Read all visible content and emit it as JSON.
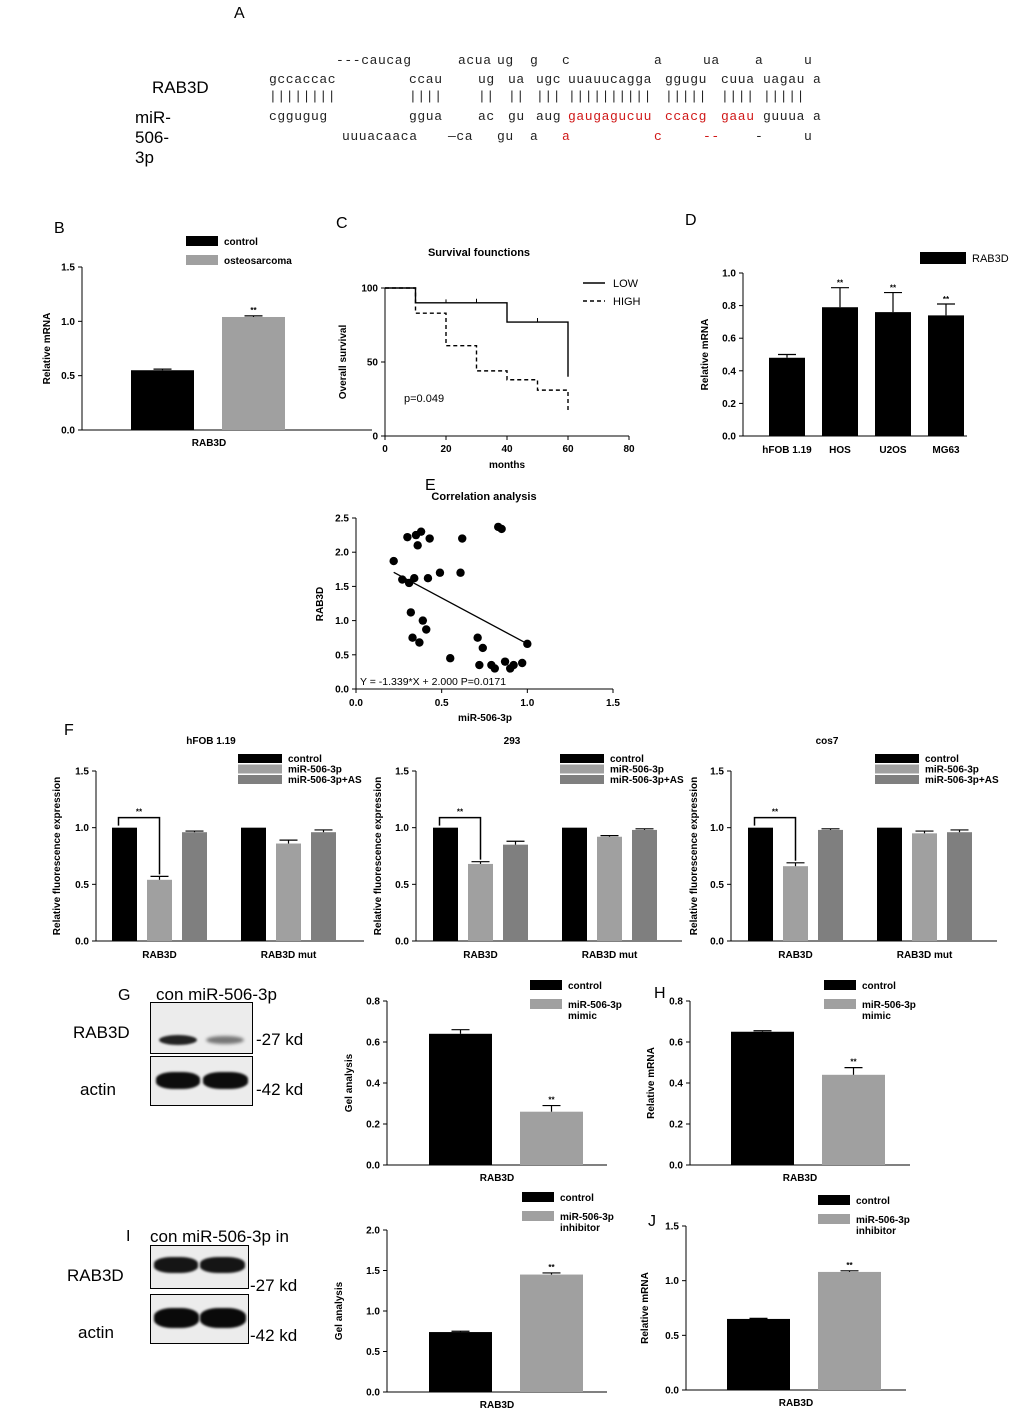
{
  "panel_letters": {
    "A": "A",
    "B": "B",
    "C": "C",
    "D": "D",
    "E": "E",
    "F": "F",
    "G": "G",
    "H": "H",
    "I": "I",
    "J": "J"
  },
  "panelA": {
    "gene_label": "RAB3D",
    "mirna_label": "miR-506-3p",
    "rows": [
      {
        "id": "r1",
        "color": "#222222",
        "segments": [
          {
            "text": "---caucag",
            "x": 336
          },
          {
            "text": "acua",
            "x": 458
          },
          {
            "text": "ug",
            "x": 497
          },
          {
            "text": "g",
            "x": 530
          },
          {
            "text": "c",
            "x": 562
          },
          {
            "text": "a",
            "x": 654
          },
          {
            "text": "ua",
            "x": 703
          },
          {
            "text": "a",
            "x": 755
          },
          {
            "text": "u",
            "x": 804
          }
        ]
      },
      {
        "id": "r2",
        "color": "#222222",
        "segments": [
          {
            "text": "gccaccac",
            "x": 269
          },
          {
            "text": "ccau",
            "x": 409
          },
          {
            "text": "ug",
            "x": 478
          },
          {
            "text": "ua",
            "x": 508
          },
          {
            "text": "ugc",
            "x": 536
          },
          {
            "text": "uuauucagga",
            "x": 568,
            "color": "#222222"
          },
          {
            "text": "ggugu",
            "x": 665
          },
          {
            "text": "cuua",
            "x": 721
          },
          {
            "text": "uagau",
            "x": 763
          },
          {
            "text": "a",
            "x": 813
          }
        ]
      },
      {
        "id": "r3",
        "color": "#222222",
        "segments": [
          {
            "text": "||||||||",
            "x": 269
          },
          {
            "text": "||||",
            "x": 409
          },
          {
            "text": "||",
            "x": 478
          },
          {
            "text": "||",
            "x": 508
          },
          {
            "text": "|||",
            "x": 536
          },
          {
            "text": "||||||||||",
            "x": 568
          },
          {
            "text": "|||||",
            "x": 665
          },
          {
            "text": "||||",
            "x": 721
          },
          {
            "text": "|||||",
            "x": 763
          }
        ]
      },
      {
        "id": "r4",
        "color": "#222222",
        "segments": [
          {
            "text": "cggugug",
            "x": 269
          },
          {
            "text": "ggua",
            "x": 409
          },
          {
            "text": "ac",
            "x": 478
          },
          {
            "text": "gu",
            "x": 508
          },
          {
            "text": "aug",
            "x": 536
          },
          {
            "text": "gaugagucuu",
            "x": 568,
            "color": "#d01818"
          },
          {
            "text": "ccacg",
            "x": 665,
            "color": "#d01818"
          },
          {
            "text": "gaau",
            "x": 721,
            "color": "#d01818"
          },
          {
            "text": "guuua",
            "x": 763
          },
          {
            "text": "a",
            "x": 813
          }
        ]
      },
      {
        "id": "r5",
        "color": "#222222",
        "segments": [
          {
            "text": "uuuacaaca",
            "x": 342
          },
          {
            "text": "—ca",
            "x": 448
          },
          {
            "text": "gu",
            "x": 497
          },
          {
            "text": "a",
            "x": 530
          },
          {
            "text": "a",
            "x": 562,
            "color": "#d01818"
          },
          {
            "text": "c",
            "x": 654,
            "color": "#d01818"
          },
          {
            "text": "--",
            "x": 703,
            "color": "#d01818"
          },
          {
            "text": "-",
            "x": 755
          },
          {
            "text": "u",
            "x": 804
          }
        ]
      }
    ]
  },
  "panelG": {
    "header": "con miR-506-3p",
    "protein": "RAB3D",
    "control": "actin",
    "size1": "-27 kd",
    "size2": "-42 kd"
  },
  "panelI": {
    "header": "con miR-506-3p in",
    "protein": "RAB3D",
    "control": "actin",
    "size1": "-27 kd",
    "size2": "-42 kd"
  },
  "chart_data": [
    {
      "id": "B",
      "type": "bar",
      "xlabel": "RAB3D",
      "ylabel": "Relative mRNA",
      "ylim": [
        0,
        1.5
      ],
      "yticks": [
        "0.0",
        "0.5",
        "1.0",
        "1.5"
      ],
      "legend": "top-center",
      "sig": "**",
      "series": [
        {
          "name": "control",
          "color": "#000000",
          "values": [
            0.55
          ],
          "err": [
            0.01
          ]
        },
        {
          "name": "osteosarcoma",
          "color": "#a0a0a0",
          "values": [
            1.04
          ],
          "err": [
            0.01
          ]
        }
      ]
    },
    {
      "id": "C",
      "type": "line",
      "title": "Survival founctions",
      "xlabel": "months",
      "ylabel": "Overall survival",
      "xlim": [
        0,
        80
      ],
      "ylim": [
        0,
        100
      ],
      "xticks": [
        "0",
        "20",
        "40",
        "60",
        "80"
      ],
      "yticks": [
        "0",
        "50",
        "100"
      ],
      "annotation": "p=0.049",
      "series": [
        {
          "name": "LOW",
          "style": "solid",
          "points": [
            [
              0,
              100
            ],
            [
              10,
              100
            ],
            [
              10,
              90
            ],
            [
              40,
              90
            ],
            [
              40,
              77
            ],
            [
              60,
              77
            ],
            [
              60,
              40
            ]
          ]
        },
        {
          "name": "HIGH",
          "style": "dashed",
          "points": [
            [
              0,
              100
            ],
            [
              10,
              100
            ],
            [
              10,
              83
            ],
            [
              20,
              83
            ],
            [
              20,
              61
            ],
            [
              30,
              61
            ],
            [
              30,
              44
            ],
            [
              40,
              44
            ],
            [
              40,
              38
            ],
            [
              50,
              38
            ],
            [
              50,
              31
            ],
            [
              60,
              31
            ],
            [
              60,
              16
            ]
          ]
        }
      ]
    },
    {
      "id": "D",
      "type": "bar",
      "ylabel": "Relative mRNA",
      "ylim": [
        0,
        1.0
      ],
      "yticks": [
        "0.0",
        "0.2",
        "0.4",
        "0.6",
        "0.8",
        "1.0"
      ],
      "categories": [
        "hFOB 1.19",
        "HOS",
        "U2OS",
        "MG63"
      ],
      "legend": "top-right",
      "series": [
        {
          "name": "RAB3D",
          "color": "#000000",
          "values": [
            0.48,
            0.79,
            0.76,
            0.74
          ],
          "err": [
            0.02,
            0.12,
            0.12,
            0.07
          ],
          "sig": [
            "",
            "**",
            "**",
            "**"
          ]
        }
      ]
    },
    {
      "id": "E",
      "type": "scatter",
      "title": "Correlation analysis",
      "xlabel": "miR-506-3p",
      "ylabel": "RAB3D",
      "xlim": [
        0,
        1.5
      ],
      "ylim": [
        0,
        2.5
      ],
      "xticks": [
        "0.0",
        "0.5",
        "1.0",
        "1.5"
      ],
      "yticks": [
        "0.0",
        "0.5",
        "1.0",
        "1.5",
        "2.0",
        "2.5"
      ],
      "equation": "Y = -1.339*X + 2.000 P=0.0171",
      "fit": {
        "slope": -1.339,
        "intercept": 2.0,
        "x0": 0.22,
        "x1": 1.0
      },
      "points": [
        [
          0.22,
          1.87
        ],
        [
          0.27,
          1.6
        ],
        [
          0.3,
          2.22
        ],
        [
          0.31,
          1.55
        ],
        [
          0.32,
          1.12
        ],
        [
          0.33,
          0.75
        ],
        [
          0.34,
          1.62
        ],
        [
          0.35,
          2.25
        ],
        [
          0.36,
          2.1
        ],
        [
          0.37,
          0.68
        ],
        [
          0.38,
          2.3
        ],
        [
          0.39,
          1.0
        ],
        [
          0.41,
          0.87
        ],
        [
          0.42,
          1.62
        ],
        [
          0.43,
          2.2
        ],
        [
          0.49,
          1.7
        ],
        [
          0.55,
          0.45
        ],
        [
          0.61,
          1.7
        ],
        [
          0.62,
          2.2
        ],
        [
          0.71,
          0.75
        ],
        [
          0.72,
          0.35
        ],
        [
          0.74,
          0.6
        ],
        [
          0.79,
          0.35
        ],
        [
          0.81,
          0.3
        ],
        [
          0.83,
          2.37
        ],
        [
          0.85,
          2.34
        ],
        [
          0.87,
          0.4
        ],
        [
          0.9,
          0.3
        ],
        [
          0.92,
          0.35
        ],
        [
          0.97,
          0.38
        ],
        [
          1.0,
          0.66
        ]
      ]
    },
    {
      "id": "F1",
      "type": "bar",
      "title": "hFOB 1.19",
      "ylabel": "Relative fluorescence expression",
      "ylim": [
        0,
        1.5
      ],
      "yticks": [
        "0.0",
        "0.5",
        "1.0",
        "1.5"
      ],
      "categories": [
        "RAB3D",
        "RAB3D mut"
      ],
      "sig": "**",
      "series": [
        {
          "name": "control",
          "color": "#000000",
          "values": [
            1.0,
            1.0
          ],
          "err": [
            0,
            0
          ]
        },
        {
          "name": "miR-506-3p",
          "color": "#a0a0a0",
          "values": [
            0.54,
            0.86
          ],
          "err": [
            0.03,
            0.03
          ]
        },
        {
          "name": "miR-506-3p+AS",
          "color": "#7f7f7f",
          "values": [
            0.96,
            0.96
          ],
          "err": [
            0.01,
            0.02
          ]
        }
      ]
    },
    {
      "id": "F2",
      "type": "bar",
      "title": "293",
      "ylabel": "Relative fluorescence expression",
      "ylim": [
        0,
        1.5
      ],
      "yticks": [
        "0.0",
        "0.5",
        "1.0",
        "1.5"
      ],
      "categories": [
        "RAB3D",
        "RAB3D mut"
      ],
      "sig": "**",
      "series": [
        {
          "name": "control",
          "color": "#000000",
          "values": [
            1.0,
            1.0
          ],
          "err": [
            0,
            0
          ]
        },
        {
          "name": "miR-506-3p",
          "color": "#a0a0a0",
          "values": [
            0.68,
            0.92
          ],
          "err": [
            0.02,
            0.01
          ]
        },
        {
          "name": "miR-506-3p+AS",
          "color": "#7f7f7f",
          "values": [
            0.85,
            0.98
          ],
          "err": [
            0.03,
            0.01
          ]
        }
      ]
    },
    {
      "id": "F3",
      "type": "bar",
      "title": "cos7",
      "ylabel": "Relative fluorescence expression",
      "ylim": [
        0,
        1.5
      ],
      "yticks": [
        "0.0",
        "0.5",
        "1.0",
        "1.5"
      ],
      "categories": [
        "RAB3D",
        "RAB3D mut"
      ],
      "sig": "**",
      "series": [
        {
          "name": "control",
          "color": "#000000",
          "values": [
            1.0,
            1.0
          ],
          "err": [
            0,
            0
          ]
        },
        {
          "name": "miR-506-3p",
          "color": "#a0a0a0",
          "values": [
            0.66,
            0.95
          ],
          "err": [
            0.03,
            0.02
          ]
        },
        {
          "name": "miR-506-3p+AS",
          "color": "#7f7f7f",
          "values": [
            0.98,
            0.96
          ],
          "err": [
            0.01,
            0.02
          ]
        }
      ]
    },
    {
      "id": "G2",
      "type": "bar",
      "xlabel": "RAB3D",
      "ylabel": "Gel analysis",
      "ylim": [
        0,
        0.8
      ],
      "yticks": [
        "0.0",
        "0.2",
        "0.4",
        "0.6",
        "0.8"
      ],
      "sig": "**",
      "series": [
        {
          "name": "control",
          "color": "#000000",
          "values": [
            0.64
          ],
          "err": [
            0.02
          ]
        },
        {
          "name": "miR-506-3p\nmimic",
          "color": "#a0a0a0",
          "values": [
            0.26
          ],
          "err": [
            0.03
          ]
        }
      ]
    },
    {
      "id": "H",
      "type": "bar",
      "xlabel": "RAB3D",
      "ylabel": "Relative mRNA",
      "ylim": [
        0,
        0.8
      ],
      "yticks": [
        "0.0",
        "0.2",
        "0.4",
        "0.6",
        "0.8"
      ],
      "sig": "**",
      "series": [
        {
          "name": "control",
          "color": "#000000",
          "values": [
            0.65
          ],
          "err": [
            0.005
          ]
        },
        {
          "name": "miR-506-3p\nmimic",
          "color": "#a0a0a0",
          "values": [
            0.44
          ],
          "err": [
            0.035
          ]
        }
      ]
    },
    {
      "id": "I2",
      "type": "bar",
      "xlabel": "RAB3D",
      "ylabel": "Gel analysis",
      "ylim": [
        0,
        2.0
      ],
      "yticks": [
        "0.0",
        "0.5",
        "1.0",
        "1.5",
        "2.0"
      ],
      "sig": "**",
      "series": [
        {
          "name": "control",
          "color": "#000000",
          "values": [
            0.74
          ],
          "err": [
            0.01
          ]
        },
        {
          "name": "miR-506-3p\ninhibitor",
          "color": "#a0a0a0",
          "values": [
            1.45
          ],
          "err": [
            0.02
          ]
        }
      ]
    },
    {
      "id": "J",
      "type": "bar",
      "xlabel": "RAB3D",
      "ylabel": "Relative mRNA",
      "ylim": [
        0,
        1.5
      ],
      "yticks": [
        "0.0",
        "0.5",
        "1.0",
        "1.5"
      ],
      "sig": "**",
      "series": [
        {
          "name": "control",
          "color": "#000000",
          "values": [
            0.65
          ],
          "err": [
            0.005
          ]
        },
        {
          "name": "miR-506-3p\ninhibitor",
          "color": "#a0a0a0",
          "values": [
            1.08
          ],
          "err": [
            0.01
          ]
        }
      ]
    }
  ]
}
